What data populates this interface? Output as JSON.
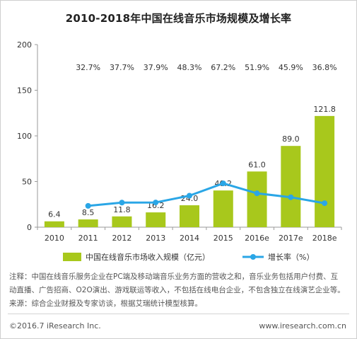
{
  "title": "2010-2018年中国在线音乐市场规模及增长率",
  "notes": {
    "line1": "注释：中国在线音乐服务企业在PC端及移动端音乐业务方面的营收之和，音乐业务包括用户付费、互",
    "line2": "动直播、广告招商、O2O演出、游戏联运等收入，不包括在线电台企业，不包含独立在线演艺企业等。",
    "line3": "来源：综合企业财报及专家访谈，根据艾瑞统计模型核算。"
  },
  "footer": {
    "copyright": "©2016.7 iResearch Inc.",
    "website": "www.iresearch.com.cn"
  },
  "chart_data": {
    "type": "bar",
    "categories": [
      "2010",
      "2011",
      "2012",
      "2013",
      "2014",
      "2015",
      "2016e",
      "2017e",
      "2018e"
    ],
    "series": [
      {
        "name": "中国在线音乐市场收入规模（亿元）",
        "type": "bar",
        "color": "#a8c81c",
        "values": [
          6.4,
          8.5,
          11.8,
          16.2,
          24.0,
          40.2,
          61.0,
          89.0,
          121.8
        ],
        "labels": [
          "6.4",
          "8.5",
          "11.8",
          "16.2",
          "24.0",
          "40.2",
          "61.0",
          "89.0",
          "121.8"
        ]
      },
      {
        "name": "增长率（%）",
        "type": "line",
        "color": "#2aa6e6",
        "values": [
          null,
          32.7,
          37.7,
          37.9,
          48.3,
          67.2,
          51.9,
          45.9,
          36.8
        ],
        "labels": [
          "",
          "32.7%",
          "37.7%",
          "37.9%",
          "48.3%",
          "67.2%",
          "51.9%",
          "45.9%",
          "36.8%"
        ]
      }
    ],
    "yticks": [
      "0",
      "50",
      "100",
      "150",
      "200"
    ],
    "ylim": [
      0,
      200
    ],
    "rate_range": [
      0,
      280
    ],
    "grid": false,
    "legend_position": "bottom",
    "xlabel": "",
    "ylabel": ""
  }
}
